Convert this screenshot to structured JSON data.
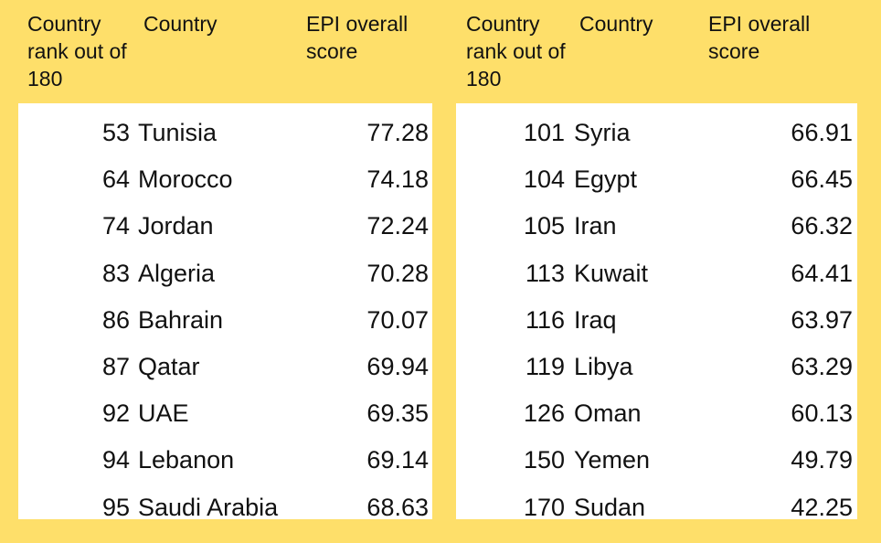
{
  "tables": [
    {
      "header": [
        "Country rank out of 180",
        "Country",
        "EPI overall score"
      ],
      "rows": [
        [
          53,
          "Tunisia",
          77.28
        ],
        [
          64,
          "Morocco",
          74.18
        ],
        [
          74,
          "Jordan",
          72.24
        ],
        [
          83,
          "Algeria",
          70.28
        ],
        [
          86,
          "Bahrain",
          70.07
        ],
        [
          87,
          "Qatar",
          69.94
        ],
        [
          92,
          "UAE",
          69.35
        ],
        [
          94,
          "Lebanon",
          69.14
        ],
        [
          95,
          "Saudi Arabia",
          68.63
        ]
      ]
    },
    {
      "header": [
        "Country rank out of 180",
        "Country",
        "EPI overall score"
      ],
      "rows": [
        [
          101,
          "Syria",
          66.91
        ],
        [
          104,
          "Egypt",
          66.45
        ],
        [
          105,
          "Iran",
          66.32
        ],
        [
          113,
          "Kuwait",
          64.41
        ],
        [
          116,
          "Iraq",
          63.97
        ],
        [
          119,
          "Libya",
          63.29
        ],
        [
          126,
          "Oman",
          60.13
        ],
        [
          150,
          "Yemen",
          49.79
        ],
        [
          170,
          "Sudan",
          42.25
        ]
      ]
    }
  ]
}
